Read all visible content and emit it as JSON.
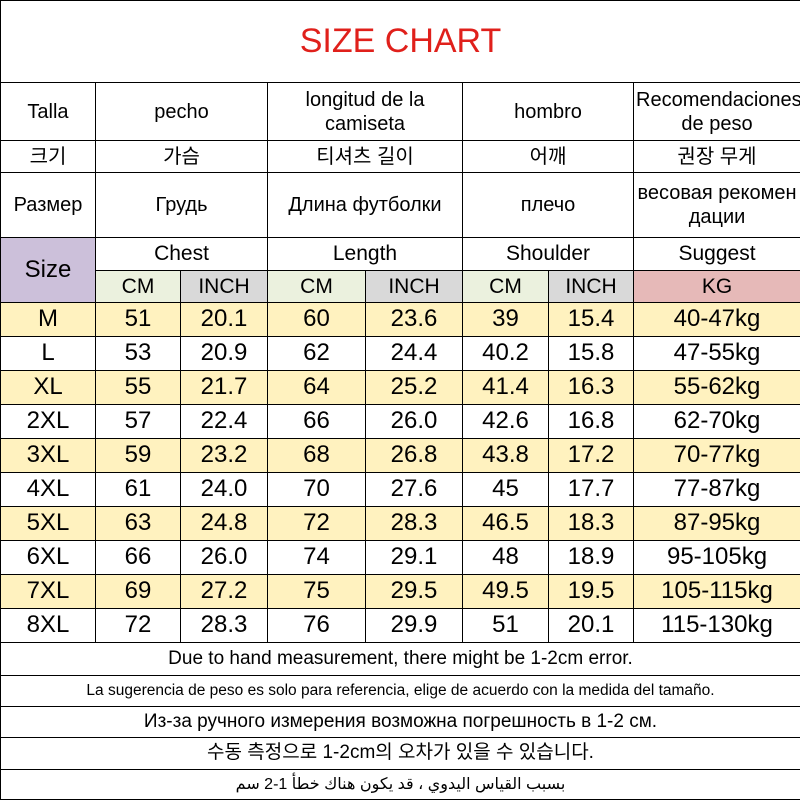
{
  "title": "SIZE CHART",
  "header_rows": [
    [
      "Talla",
      "pecho",
      "longitud de la camiseta",
      "hombro",
      "Recomendaciones de peso"
    ],
    [
      "크기",
      "가슴",
      "티셔츠 길이",
      "어깨",
      "권장 무게"
    ],
    [
      "Размер",
      "Грудь",
      "Длина футболки",
      "плечо",
      "весовая рекомендации"
    ]
  ],
  "size_label": "Size",
  "groups": [
    "Chest",
    "Length",
    "Shoulder",
    "Suggest"
  ],
  "units": [
    "CM",
    "INCH",
    "CM",
    "INCH",
    "CM",
    "INCH",
    "KG"
  ],
  "rows": [
    [
      "M",
      "51",
      "20.1",
      "60",
      "23.6",
      "39",
      "15.4",
      "40-47kg"
    ],
    [
      "L",
      "53",
      "20.9",
      "62",
      "24.4",
      "40.2",
      "15.8",
      "47-55kg"
    ],
    [
      "XL",
      "55",
      "21.7",
      "64",
      "25.2",
      "41.4",
      "16.3",
      "55-62kg"
    ],
    [
      "2XL",
      "57",
      "22.4",
      "66",
      "26.0",
      "42.6",
      "16.8",
      "62-70kg"
    ],
    [
      "3XL",
      "59",
      "23.2",
      "68",
      "26.8",
      "43.8",
      "17.2",
      "70-77kg"
    ],
    [
      "4XL",
      "61",
      "24.0",
      "70",
      "27.6",
      "45",
      "17.7",
      "77-87kg"
    ],
    [
      "5XL",
      "63",
      "24.8",
      "72",
      "28.3",
      "46.5",
      "18.3",
      "87-95kg"
    ],
    [
      "6XL",
      "66",
      "26.0",
      "74",
      "29.1",
      "48",
      "18.9",
      "95-105kg"
    ],
    [
      "7XL",
      "69",
      "27.2",
      "75",
      "29.5",
      "49.5",
      "19.5",
      "105-115kg"
    ],
    [
      "8XL",
      "72",
      "28.3",
      "76",
      "29.9",
      "51",
      "20.1",
      "115-130kg"
    ]
  ],
  "notes": [
    "Due to hand measurement, there might be 1-2cm error.",
    "La sugerencia de peso es solo para referencia, elige de acuerdo con la medida del tamaño.",
    "Из-за ручного измерения возможна погрешность в 1-2 см.",
    "수동 측정으로 1-2cm의 오차가 있을 수 있습니다.",
    "بسبب القياس اليدوي ، قد يكون هناك خطأ 1-2 سم"
  ]
}
